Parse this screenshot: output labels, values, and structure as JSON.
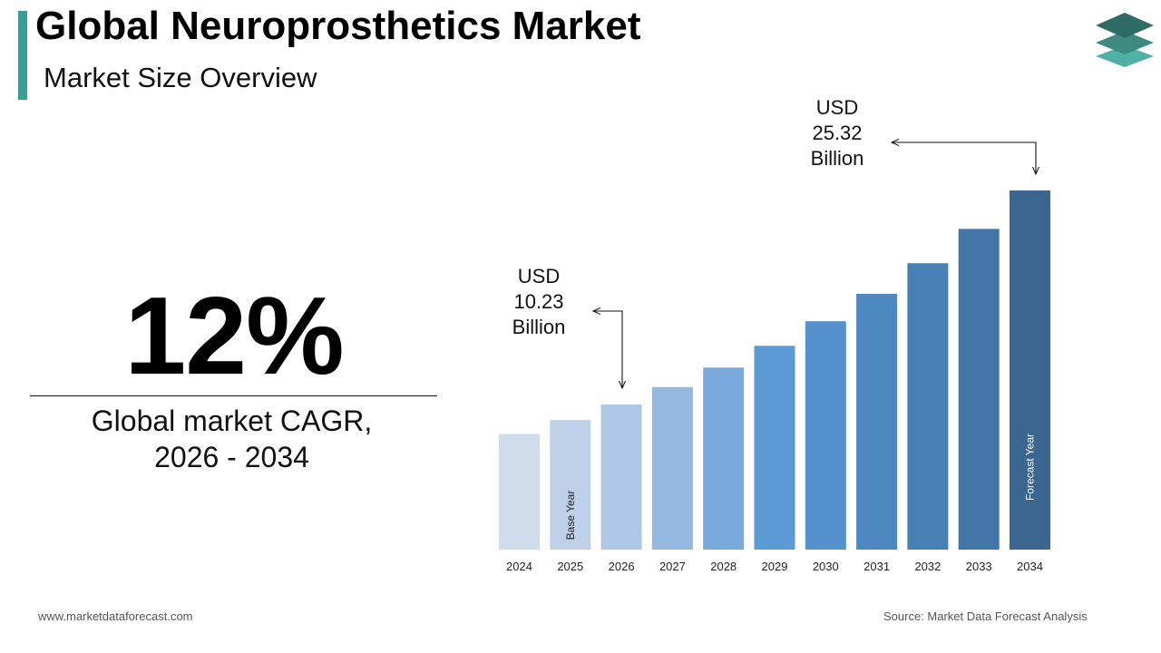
{
  "header": {
    "title": "Global Neuroprosthetics Market",
    "subtitle": "Market Size Overview"
  },
  "cagr": {
    "value": "12%",
    "label_line1": "Global market CAGR,",
    "label_line2": "2026 - 2034"
  },
  "logo": {
    "icon": "stacked-layers-icon"
  },
  "chart_data": {
    "type": "bar",
    "categories": [
      "2024",
      "2025",
      "2026",
      "2027",
      "2028",
      "2029",
      "2030",
      "2031",
      "2032",
      "2033",
      "2034"
    ],
    "values": [
      8.15,
      9.13,
      10.23,
      11.46,
      12.83,
      14.37,
      16.1,
      18.03,
      20.19,
      22.61,
      25.32
    ],
    "bar_colors": [
      "#cfdcec",
      "#bed1e8",
      "#adc7e5",
      "#94b8e0",
      "#7aaadd",
      "#5c9ad6",
      "#5591cc",
      "#4e88c0",
      "#4880b6",
      "#4276a8",
      "#3b6690"
    ],
    "bar_labels": {
      "2025": "Base Year",
      "2034": "Forecast Year"
    },
    "annotations": [
      {
        "category": "2026",
        "line1": "USD",
        "line2": "10.23",
        "line3": "Billion"
      },
      {
        "category": "2034",
        "line1": "USD",
        "line2": "25.32",
        "line3": "Billion"
      }
    ],
    "unit": "USD Billion"
  },
  "footer": {
    "left": "www.marketdataforecast.com",
    "right": "Source: Market Data Forecast Analysis"
  },
  "colors": {
    "accent": "#3a9e96",
    "logo_dark": "#2f6b65",
    "logo_mid": "#3d8a82",
    "logo_light": "#4fb0a6"
  }
}
